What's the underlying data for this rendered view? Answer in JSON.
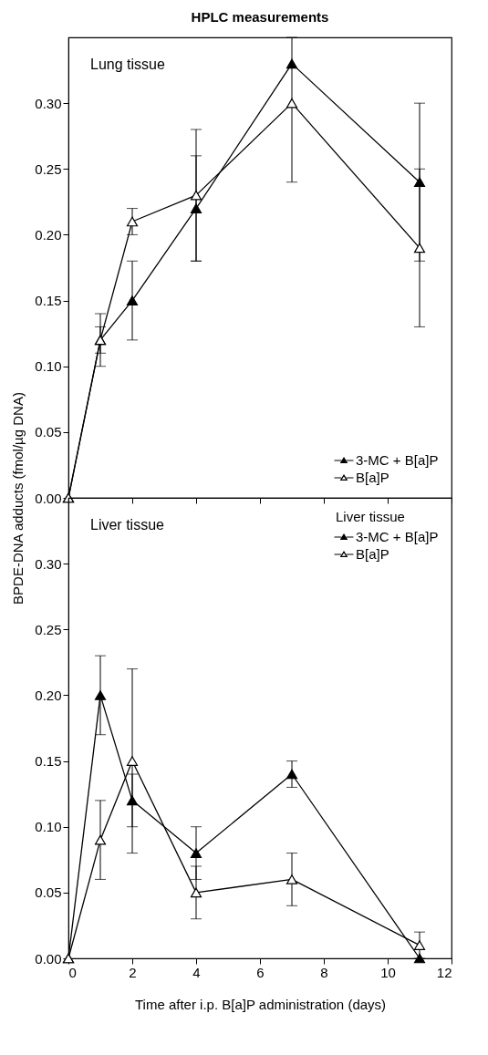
{
  "chart_data": [
    {
      "type": "line",
      "title": "HPLC measurements",
      "annotations": [
        "Lung tissue"
      ],
      "x": [
        0,
        1,
        2,
        4,
        7,
        11
      ],
      "xlim": [
        0,
        12
      ],
      "xticks": [
        0,
        2,
        4,
        6,
        8,
        10,
        12
      ],
      "ylim": [
        0,
        0.35
      ],
      "yticks": [
        {
          "value": 0,
          "label": "0.00"
        },
        0.05,
        {
          "value": 0.1,
          "label": "0.10"
        },
        0.15,
        {
          "value": 0.2,
          "label": "0.20"
        },
        0.25,
        {
          "value": 0.3,
          "label": "0.30"
        }
      ],
      "tick_labels": "y",
      "grid": false,
      "legend": "bottom right",
      "marker": "triangle",
      "line_style": "solid",
      "series": [
        {
          "name": "3-MC + B[a]P",
          "color": "#000000",
          "values": [
            0,
            0.12,
            0.15,
            0.22,
            0.33,
            0.24
          ],
          "errors": [
            null,
            0.02,
            0.03,
            0.04,
            null,
            0.06
          ]
        },
        {
          "name": "B[a]P",
          "color": "#000000",
          "values": [
            0,
            0.12,
            0.21,
            0.23,
            0.3,
            0.19
          ],
          "errors": [
            null,
            0.01,
            0.01,
            0.05,
            [
              0.24,
              0.35
            ],
            0.06
          ]
        }
      ]
    },
    {
      "type": "line",
      "xlabel": "Time after i.p. B[a]P administration (days)",
      "ylabel": "BPDE-DNA adducts (fmol/µg DNA)",
      "legend_title": "Liver tissue",
      "annotations": [
        "Liver tissue"
      ],
      "x": [
        0,
        1,
        2,
        4,
        7,
        11
      ],
      "xlim": [
        0,
        12
      ],
      "xticks": [
        0,
        2,
        4,
        6,
        8,
        10,
        12
      ],
      "ylim": [
        0,
        0.35
      ],
      "yticks": [
        {
          "value": 0,
          "label": "0.00"
        },
        0.05,
        {
          "value": 0.1,
          "label": "0.10"
        },
        0.15,
        {
          "value": 0.2,
          "label": "0.20"
        },
        0.25,
        {
          "value": 0.3,
          "label": "0.30"
        }
      ],
      "grid": false,
      "legend": "top right",
      "marker": "triangle",
      "line_style": "solid",
      "series": [
        {
          "name": "3-MC + B[a]P",
          "color": "#000000",
          "values": [
            0,
            0.2,
            0.12,
            0.08,
            0.14,
            0
          ],
          "errors": [
            null,
            0.03,
            0.02,
            0.02,
            0.01,
            null
          ]
        },
        {
          "name": "B[a]P",
          "color": "#000000",
          "values": [
            0,
            0.09,
            0.15,
            0.05,
            0.06,
            0.01
          ],
          "errors": [
            null,
            0.03,
            0.07,
            0.02,
            0.02,
            0.01
          ]
        }
      ]
    }
  ]
}
